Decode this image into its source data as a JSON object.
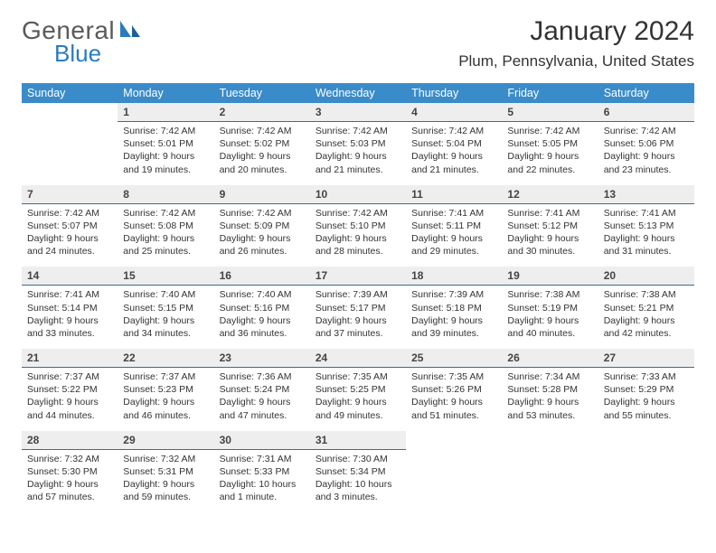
{
  "logo": {
    "word1": "General",
    "word2": "Blue",
    "word1_color": "#5a5a5a",
    "word2_color": "#2b7bbf"
  },
  "title": "January 2024",
  "location": "Plum, Pennsylvania, United States",
  "header_bg": "#3a8bc9",
  "daynum_bg": "#eeeeee",
  "daynum_border": "#3a6b9a",
  "day_names": [
    "Sunday",
    "Monday",
    "Tuesday",
    "Wednesday",
    "Thursday",
    "Friday",
    "Saturday"
  ],
  "weeks": [
    [
      {
        "n": "",
        "sunrise": "",
        "sunset": "",
        "daylight": ""
      },
      {
        "n": "1",
        "sunrise": "Sunrise: 7:42 AM",
        "sunset": "Sunset: 5:01 PM",
        "daylight": "Daylight: 9 hours and 19 minutes."
      },
      {
        "n": "2",
        "sunrise": "Sunrise: 7:42 AM",
        "sunset": "Sunset: 5:02 PM",
        "daylight": "Daylight: 9 hours and 20 minutes."
      },
      {
        "n": "3",
        "sunrise": "Sunrise: 7:42 AM",
        "sunset": "Sunset: 5:03 PM",
        "daylight": "Daylight: 9 hours and 21 minutes."
      },
      {
        "n": "4",
        "sunrise": "Sunrise: 7:42 AM",
        "sunset": "Sunset: 5:04 PM",
        "daylight": "Daylight: 9 hours and 21 minutes."
      },
      {
        "n": "5",
        "sunrise": "Sunrise: 7:42 AM",
        "sunset": "Sunset: 5:05 PM",
        "daylight": "Daylight: 9 hours and 22 minutes."
      },
      {
        "n": "6",
        "sunrise": "Sunrise: 7:42 AM",
        "sunset": "Sunset: 5:06 PM",
        "daylight": "Daylight: 9 hours and 23 minutes."
      }
    ],
    [
      {
        "n": "7",
        "sunrise": "Sunrise: 7:42 AM",
        "sunset": "Sunset: 5:07 PM",
        "daylight": "Daylight: 9 hours and 24 minutes."
      },
      {
        "n": "8",
        "sunrise": "Sunrise: 7:42 AM",
        "sunset": "Sunset: 5:08 PM",
        "daylight": "Daylight: 9 hours and 25 minutes."
      },
      {
        "n": "9",
        "sunrise": "Sunrise: 7:42 AM",
        "sunset": "Sunset: 5:09 PM",
        "daylight": "Daylight: 9 hours and 26 minutes."
      },
      {
        "n": "10",
        "sunrise": "Sunrise: 7:42 AM",
        "sunset": "Sunset: 5:10 PM",
        "daylight": "Daylight: 9 hours and 28 minutes."
      },
      {
        "n": "11",
        "sunrise": "Sunrise: 7:41 AM",
        "sunset": "Sunset: 5:11 PM",
        "daylight": "Daylight: 9 hours and 29 minutes."
      },
      {
        "n": "12",
        "sunrise": "Sunrise: 7:41 AM",
        "sunset": "Sunset: 5:12 PM",
        "daylight": "Daylight: 9 hours and 30 minutes."
      },
      {
        "n": "13",
        "sunrise": "Sunrise: 7:41 AM",
        "sunset": "Sunset: 5:13 PM",
        "daylight": "Daylight: 9 hours and 31 minutes."
      }
    ],
    [
      {
        "n": "14",
        "sunrise": "Sunrise: 7:41 AM",
        "sunset": "Sunset: 5:14 PM",
        "daylight": "Daylight: 9 hours and 33 minutes."
      },
      {
        "n": "15",
        "sunrise": "Sunrise: 7:40 AM",
        "sunset": "Sunset: 5:15 PM",
        "daylight": "Daylight: 9 hours and 34 minutes."
      },
      {
        "n": "16",
        "sunrise": "Sunrise: 7:40 AM",
        "sunset": "Sunset: 5:16 PM",
        "daylight": "Daylight: 9 hours and 36 minutes."
      },
      {
        "n": "17",
        "sunrise": "Sunrise: 7:39 AM",
        "sunset": "Sunset: 5:17 PM",
        "daylight": "Daylight: 9 hours and 37 minutes."
      },
      {
        "n": "18",
        "sunrise": "Sunrise: 7:39 AM",
        "sunset": "Sunset: 5:18 PM",
        "daylight": "Daylight: 9 hours and 39 minutes."
      },
      {
        "n": "19",
        "sunrise": "Sunrise: 7:38 AM",
        "sunset": "Sunset: 5:19 PM",
        "daylight": "Daylight: 9 hours and 40 minutes."
      },
      {
        "n": "20",
        "sunrise": "Sunrise: 7:38 AM",
        "sunset": "Sunset: 5:21 PM",
        "daylight": "Daylight: 9 hours and 42 minutes."
      }
    ],
    [
      {
        "n": "21",
        "sunrise": "Sunrise: 7:37 AM",
        "sunset": "Sunset: 5:22 PM",
        "daylight": "Daylight: 9 hours and 44 minutes."
      },
      {
        "n": "22",
        "sunrise": "Sunrise: 7:37 AM",
        "sunset": "Sunset: 5:23 PM",
        "daylight": "Daylight: 9 hours and 46 minutes."
      },
      {
        "n": "23",
        "sunrise": "Sunrise: 7:36 AM",
        "sunset": "Sunset: 5:24 PM",
        "daylight": "Daylight: 9 hours and 47 minutes."
      },
      {
        "n": "24",
        "sunrise": "Sunrise: 7:35 AM",
        "sunset": "Sunset: 5:25 PM",
        "daylight": "Daylight: 9 hours and 49 minutes."
      },
      {
        "n": "25",
        "sunrise": "Sunrise: 7:35 AM",
        "sunset": "Sunset: 5:26 PM",
        "daylight": "Daylight: 9 hours and 51 minutes."
      },
      {
        "n": "26",
        "sunrise": "Sunrise: 7:34 AM",
        "sunset": "Sunset: 5:28 PM",
        "daylight": "Daylight: 9 hours and 53 minutes."
      },
      {
        "n": "27",
        "sunrise": "Sunrise: 7:33 AM",
        "sunset": "Sunset: 5:29 PM",
        "daylight": "Daylight: 9 hours and 55 minutes."
      }
    ],
    [
      {
        "n": "28",
        "sunrise": "Sunrise: 7:32 AM",
        "sunset": "Sunset: 5:30 PM",
        "daylight": "Daylight: 9 hours and 57 minutes."
      },
      {
        "n": "29",
        "sunrise": "Sunrise: 7:32 AM",
        "sunset": "Sunset: 5:31 PM",
        "daylight": "Daylight: 9 hours and 59 minutes."
      },
      {
        "n": "30",
        "sunrise": "Sunrise: 7:31 AM",
        "sunset": "Sunset: 5:33 PM",
        "daylight": "Daylight: 10 hours and 1 minute."
      },
      {
        "n": "31",
        "sunrise": "Sunrise: 7:30 AM",
        "sunset": "Sunset: 5:34 PM",
        "daylight": "Daylight: 10 hours and 3 minutes."
      },
      {
        "n": "",
        "sunrise": "",
        "sunset": "",
        "daylight": ""
      },
      {
        "n": "",
        "sunrise": "",
        "sunset": "",
        "daylight": ""
      },
      {
        "n": "",
        "sunrise": "",
        "sunset": "",
        "daylight": ""
      }
    ]
  ]
}
